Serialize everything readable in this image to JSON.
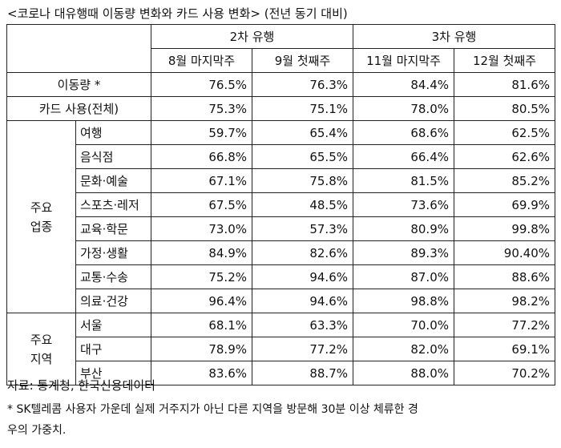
{
  "title": "<코로나 대유행때 이동량 변화와 카드 사용 변화> (전년 동기 대비)",
  "header": {
    "wave2": "2차 유행",
    "wave3": "3차 유행",
    "cols": [
      "8월 마지막주",
      "9월 첫째주",
      "11월 마지막주",
      "12월 첫째주"
    ]
  },
  "rows_top": [
    {
      "label": "이동량 *",
      "values": [
        "76.5%",
        "76.3%",
        "84.4%",
        "81.6%"
      ]
    },
    {
      "label": "카드 사용(전체)",
      "values": [
        "75.3%",
        "75.1%",
        "78.0%",
        "80.5%"
      ]
    }
  ],
  "groups": {
    "industry": {
      "label_line1": "주요",
      "label_line2": "업종",
      "rows": [
        {
          "label": "여행",
          "values": [
            "59.7%",
            "65.4%",
            "68.6%",
            "62.5%"
          ]
        },
        {
          "label": "음식점",
          "values": [
            "66.8%",
            "65.5%",
            "66.4%",
            "62.6%"
          ]
        },
        {
          "label": "문화·예술",
          "values": [
            "67.1%",
            "75.8%",
            "81.5%",
            "85.2%"
          ]
        },
        {
          "label": "스포츠·레저",
          "values": [
            "67.5%",
            "48.5%",
            "73.6%",
            "69.9%"
          ]
        },
        {
          "label": "교육·학문",
          "values": [
            "73.0%",
            "57.3%",
            "80.9%",
            "99.8%"
          ]
        },
        {
          "label": "가정·생활",
          "values": [
            "84.9%",
            "82.6%",
            "89.3%",
            "90.40%"
          ]
        },
        {
          "label": "교통·수송",
          "values": [
            "75.2%",
            "94.6%",
            "87.0%",
            "88.6%"
          ]
        },
        {
          "label": "의료·건강",
          "values": [
            "96.4%",
            "94.6%",
            "98.8%",
            "98.2%"
          ]
        }
      ]
    },
    "region": {
      "label_line1": "주요",
      "label_line2": "지역",
      "rows": [
        {
          "label": "서울",
          "values": [
            "68.1%",
            "63.3%",
            "70.0%",
            "77.2%"
          ]
        },
        {
          "label": "대구",
          "values": [
            "78.9%",
            "77.2%",
            "82.0%",
            "69.1%"
          ]
        },
        {
          "label": "부산",
          "values": [
            "83.6%",
            "88.7%",
            "88.0%",
            "70.2%"
          ]
        }
      ]
    }
  },
  "source": "자료: 통계청, 한국신용데이터",
  "footnote_line1": "* SK텔레콤 사용자 가운데 실제 거주지가 아닌 다른 지역을 방문해 30분 이상 체류한 경",
  "footnote_line2": "우의 가중치."
}
